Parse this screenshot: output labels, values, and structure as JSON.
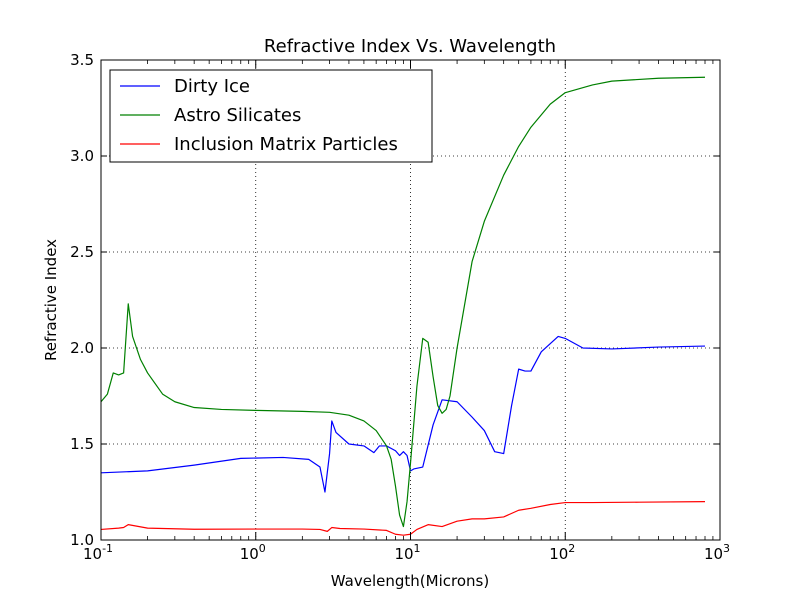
{
  "chart_data": {
    "type": "line",
    "title": "Refractive Index Vs. Wavelength",
    "xlabel": "Wavelength(Microns)",
    "ylabel": "Refractive Index",
    "xscale": "log",
    "xlim": [
      0.1,
      1000
    ],
    "ylim": [
      1.0,
      3.5
    ],
    "grid": true,
    "legend_position": "top-left",
    "x_ticks": [
      {
        "base": "10",
        "exp": "-1",
        "value": 0.1
      },
      {
        "base": "10",
        "exp": "0",
        "value": 1
      },
      {
        "base": "10",
        "exp": "1",
        "value": 10
      },
      {
        "base": "10",
        "exp": "2",
        "value": 100
      },
      {
        "base": "10",
        "exp": "3",
        "value": 1000
      }
    ],
    "y_ticks": [
      {
        "label": "1.0",
        "value": 1.0
      },
      {
        "label": "1.5",
        "value": 1.5
      },
      {
        "label": "2.0",
        "value": 2.0
      },
      {
        "label": "2.5",
        "value": 2.5
      },
      {
        "label": "3.0",
        "value": 3.0
      },
      {
        "label": "3.5",
        "value": 3.5
      }
    ],
    "series": [
      {
        "name": "Dirty Ice",
        "color": "#0000ff",
        "x": [
          0.1,
          0.2,
          0.4,
          0.8,
          1.5,
          2.2,
          2.6,
          2.8,
          3.0,
          3.1,
          3.3,
          4.0,
          5.0,
          5.8,
          6.3,
          7.0,
          8.0,
          8.5,
          9.0,
          9.5,
          10.0,
          10.5,
          12.0,
          14.0,
          16.0,
          20.0,
          25.0,
          30.0,
          35.0,
          40.0,
          45.0,
          50.0,
          55.0,
          60.0,
          70.0,
          90.0,
          100.0,
          130.0,
          200.0,
          400.0,
          800.0
        ],
        "y": [
          1.35,
          1.36,
          1.39,
          1.425,
          1.43,
          1.42,
          1.38,
          1.25,
          1.45,
          1.62,
          1.56,
          1.5,
          1.49,
          1.455,
          1.49,
          1.49,
          1.465,
          1.44,
          1.46,
          1.44,
          1.36,
          1.37,
          1.38,
          1.6,
          1.73,
          1.72,
          1.64,
          1.57,
          1.46,
          1.45,
          1.7,
          1.89,
          1.88,
          1.88,
          1.98,
          2.06,
          2.05,
          2.0,
          1.995,
          2.005,
          2.01
        ]
      },
      {
        "name": "Astro Silicates",
        "color": "#008000",
        "x": [
          0.1,
          0.11,
          0.12,
          0.13,
          0.14,
          0.15,
          0.16,
          0.18,
          0.2,
          0.25,
          0.3,
          0.4,
          0.6,
          1.0,
          2.0,
          3.0,
          4.0,
          5.0,
          6.0,
          7.0,
          7.5,
          8.0,
          8.5,
          9.0,
          9.5,
          10.0,
          11.0,
          12.0,
          13.0,
          14.0,
          15.0,
          16.0,
          17.0,
          18.0,
          20.0,
          25.0,
          30.0,
          40.0,
          50.0,
          60.0,
          80.0,
          100.0,
          150.0,
          200.0,
          400.0,
          800.0
        ],
        "y": [
          1.72,
          1.76,
          1.87,
          1.86,
          1.87,
          2.23,
          2.06,
          1.94,
          1.87,
          1.76,
          1.72,
          1.69,
          1.68,
          1.675,
          1.67,
          1.665,
          1.65,
          1.62,
          1.57,
          1.49,
          1.42,
          1.28,
          1.13,
          1.07,
          1.2,
          1.4,
          1.8,
          2.05,
          2.03,
          1.85,
          1.7,
          1.66,
          1.68,
          1.75,
          2.0,
          2.45,
          2.66,
          2.9,
          3.05,
          3.15,
          3.27,
          3.33,
          3.37,
          3.39,
          3.405,
          3.41
        ]
      },
      {
        "name": "Inclusion Matrix Particles",
        "color": "#ff0000",
        "x": [
          0.1,
          0.13,
          0.14,
          0.15,
          0.2,
          0.4,
          1.0,
          2.0,
          2.6,
          2.9,
          3.1,
          3.5,
          5.0,
          7.0,
          8.0,
          9.0,
          10.0,
          11.0,
          13.0,
          16.0,
          20.0,
          25.0,
          30.0,
          40.0,
          50.0,
          60.0,
          80.0,
          100.0,
          150.0,
          300.0,
          800.0
        ],
        "y": [
          1.055,
          1.062,
          1.065,
          1.08,
          1.062,
          1.056,
          1.057,
          1.057,
          1.055,
          1.045,
          1.065,
          1.06,
          1.057,
          1.05,
          1.03,
          1.025,
          1.03,
          1.055,
          1.08,
          1.07,
          1.098,
          1.11,
          1.11,
          1.12,
          1.155,
          1.165,
          1.185,
          1.195,
          1.195,
          1.197,
          1.2
        ]
      }
    ]
  }
}
